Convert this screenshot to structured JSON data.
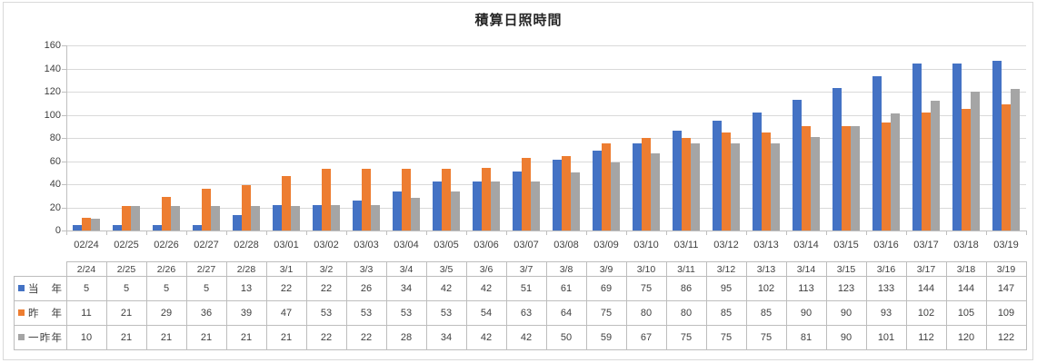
{
  "chart_data": {
    "type": "bar",
    "title": "積算日照時間",
    "categories": [
      "02/24",
      "02/25",
      "02/26",
      "02/27",
      "02/28",
      "03/01",
      "03/02",
      "03/03",
      "03/04",
      "03/05",
      "03/06",
      "03/07",
      "03/08",
      "03/09",
      "03/10",
      "03/11",
      "03/12",
      "03/13",
      "03/14",
      "03/15",
      "03/16",
      "03/17",
      "03/18",
      "03/19"
    ],
    "series": [
      {
        "name": "当年",
        "color": "#4472C4",
        "values": [
          5,
          5,
          5,
          5,
          13,
          22,
          22,
          26,
          34,
          42,
          42,
          51,
          61,
          69,
          75,
          86,
          95,
          102,
          113,
          123,
          133,
          144,
          144,
          147
        ]
      },
      {
        "name": "昨年",
        "color": "#ED7D31",
        "values": [
          11,
          21,
          29,
          36,
          39,
          47,
          53,
          53,
          53,
          53,
          54,
          63,
          64,
          75,
          80,
          80,
          85,
          85,
          90,
          90,
          93,
          102,
          105,
          109
        ]
      },
      {
        "name": "一昨年",
        "color": "#A5A5A5",
        "values": [
          10,
          21,
          21,
          21,
          21,
          21,
          22,
          22,
          28,
          34,
          42,
          42,
          50,
          59,
          67,
          75,
          75,
          75,
          81,
          90,
          101,
          112,
          120,
          122
        ]
      }
    ],
    "xlabel": "",
    "ylabel": "",
    "ylim": [
      0,
      160
    ],
    "ytick_step": 20,
    "yticks": [
      0,
      20,
      40,
      60,
      80,
      100,
      120,
      140,
      160
    ],
    "grid": true,
    "legend_position": "data-table-row-headers",
    "data_table": {
      "column_headers": [
        "2/24",
        "2/25",
        "2/26",
        "2/27",
        "2/28",
        "3/1",
        "3/2",
        "3/3",
        "3/4",
        "3/5",
        "3/6",
        "3/7",
        "3/8",
        "3/9",
        "3/10",
        "3/11",
        "3/12",
        "3/13",
        "3/14",
        "3/15",
        "3/16",
        "3/17",
        "3/18",
        "3/19"
      ],
      "row_labels": [
        "当年",
        "昨年",
        "一昨年"
      ]
    },
    "colors": {
      "series_blue": "#4472C4",
      "series_orange": "#ED7D31",
      "series_gray": "#A5A5A5",
      "gridline": "#D9D9D9",
      "axis": "#BFBFBF",
      "table_border": "#BDBDBD",
      "text": "#3f3f3f"
    }
  }
}
